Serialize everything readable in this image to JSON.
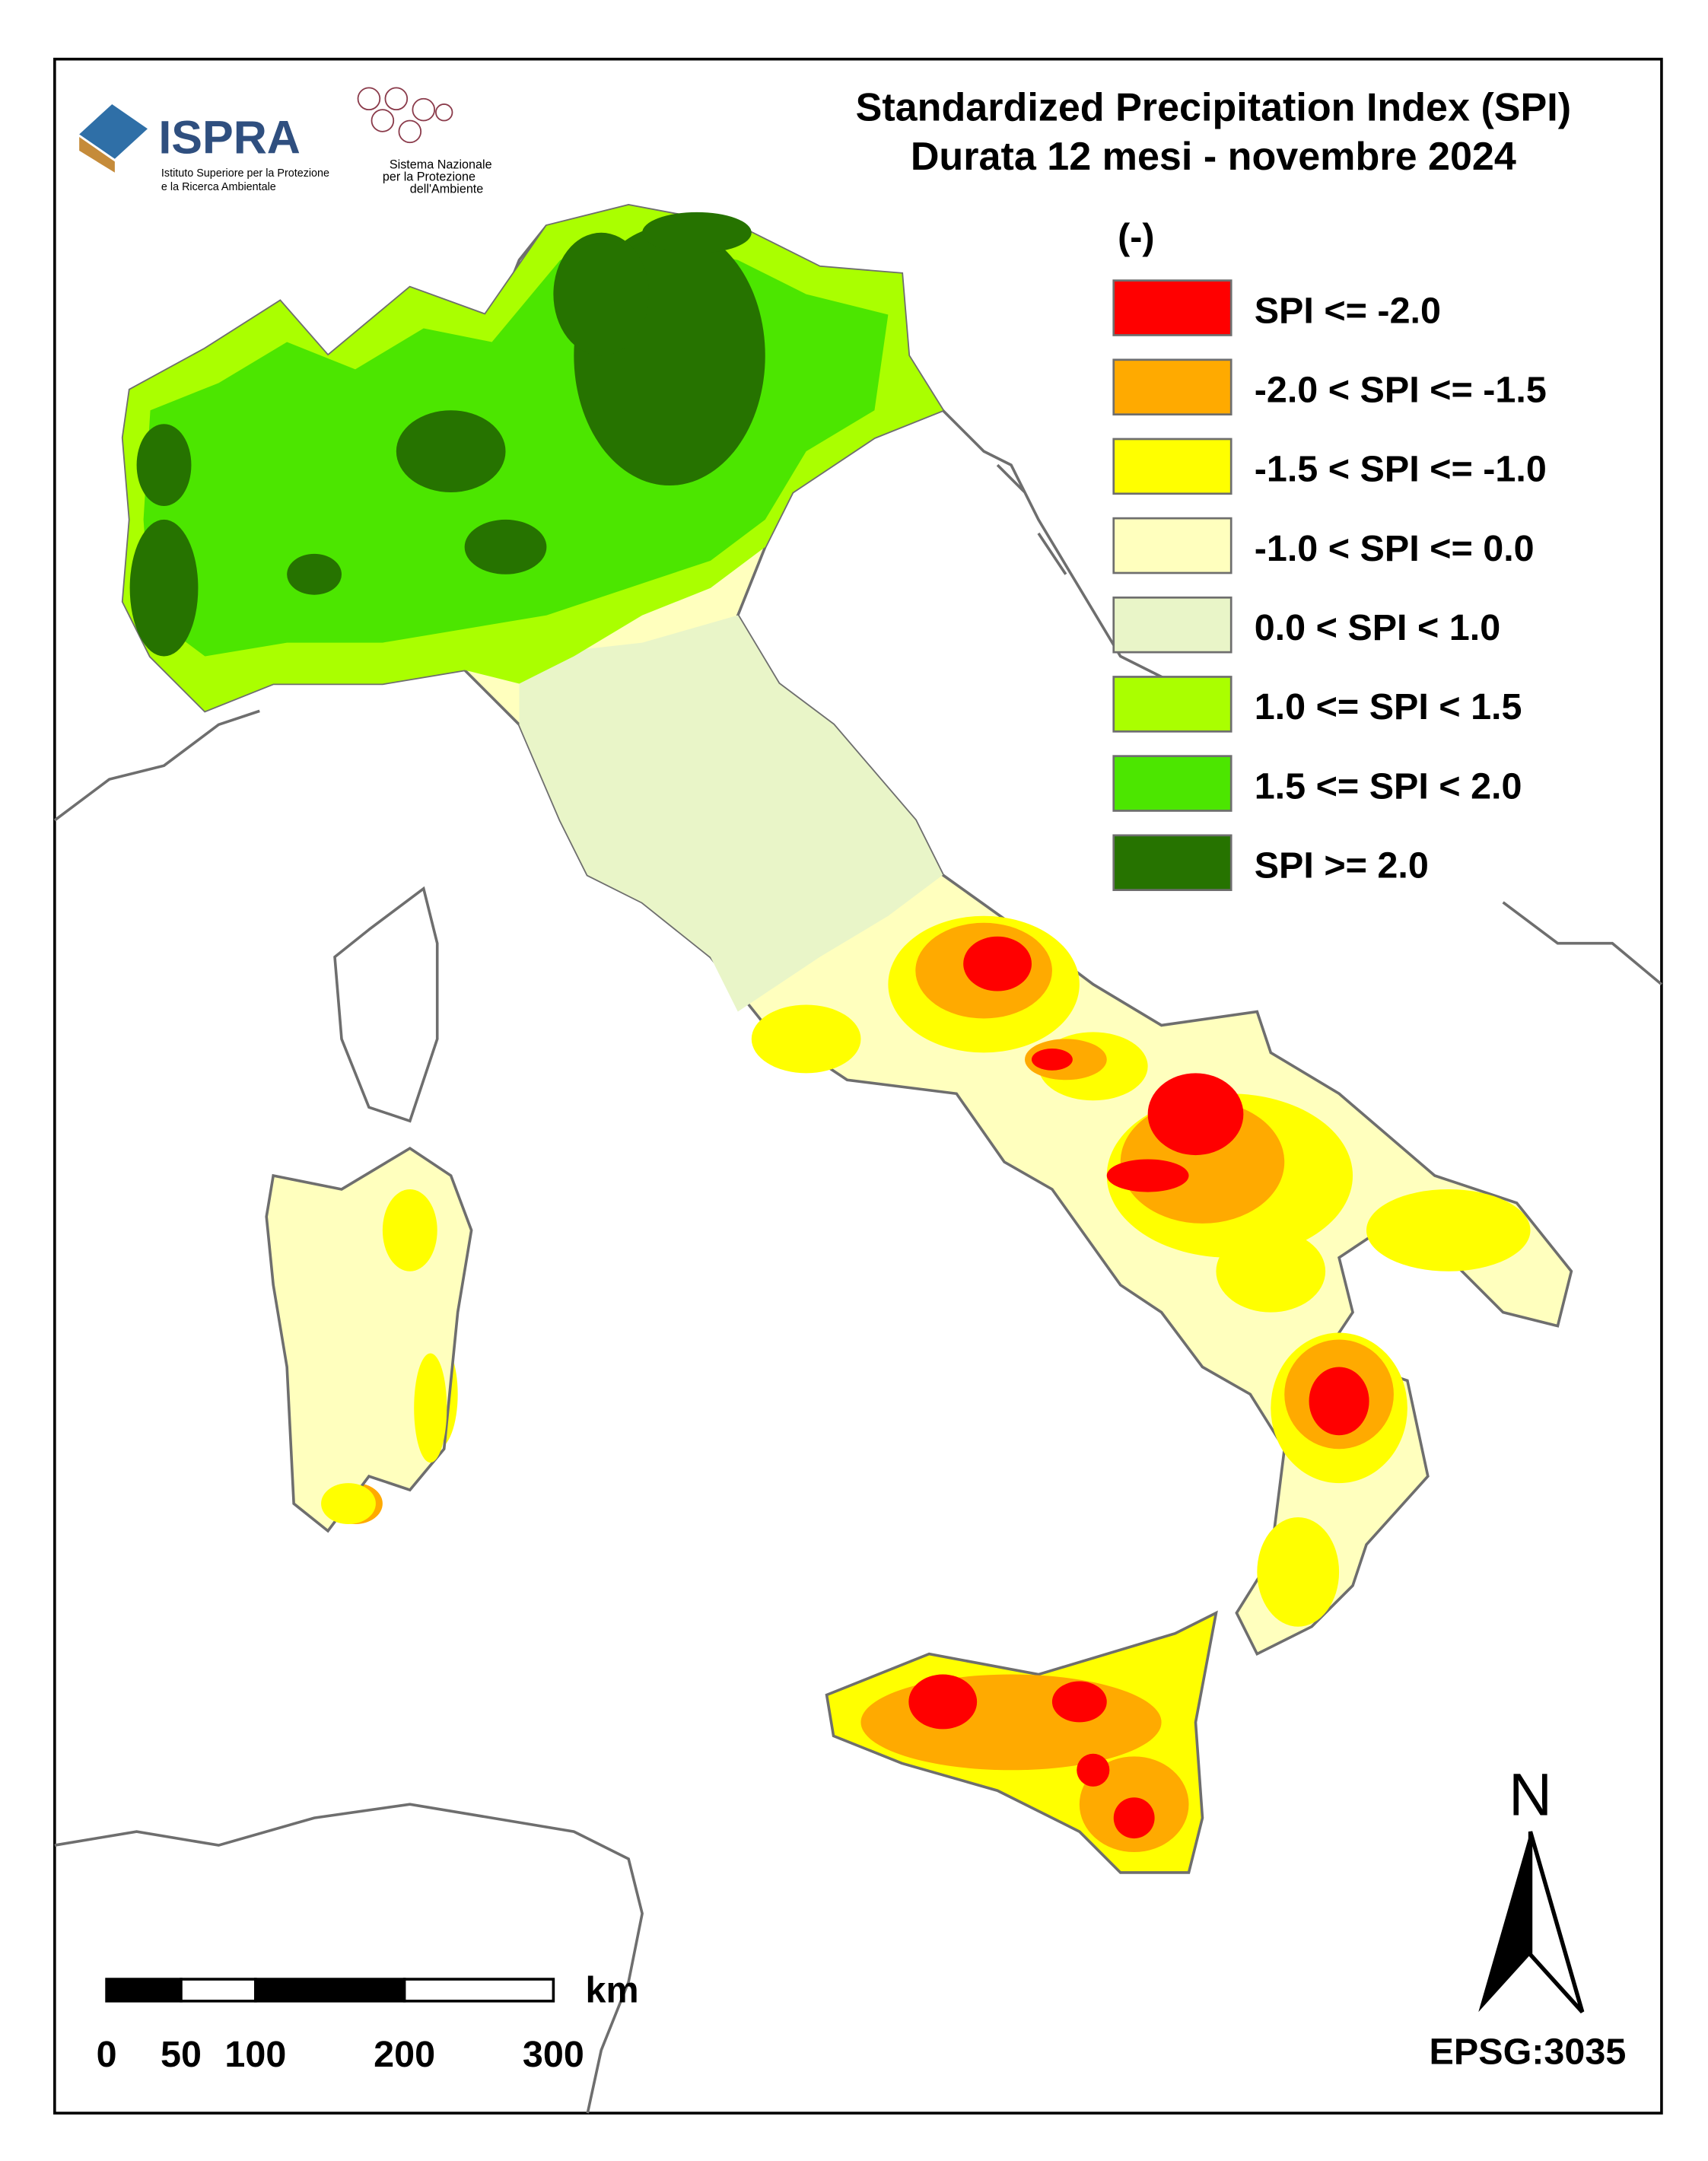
{
  "header": {
    "title_line1": "Standardized Precipitation  Index (SPI)",
    "title_line2": "Durata 12 mesi - novembre 2024"
  },
  "logos": {
    "ispra": "ISPRA",
    "ispra_subtitle": [
      "Istituto Superiore per la Protezione",
      "e la Ricerca Ambientale"
    ],
    "snpa": [
      "Sistema Nazionale",
      "per la Protezione",
      "dell'Ambiente"
    ]
  },
  "legend": {
    "unit": "(-)",
    "items": [
      {
        "label": "SPI <= -2.0",
        "color": "#ff0000"
      },
      {
        "label": "-2.0 < SPI <= -1.5",
        "color": "#ffaa00"
      },
      {
        "label": "-1.5 < SPI <= -1.0",
        "color": "#ffff00"
      },
      {
        "label": "-1.0 < SPI <= 0.0",
        "color": "#ffffbe"
      },
      {
        "label": "0.0 < SPI < 1.0",
        "color": "#e9f5c8"
      },
      {
        "label": "1.0 <= SPI < 1.5",
        "color": "#aaff00"
      },
      {
        "label": "1.5 <= SPI < 2.0",
        "color": "#4ce600"
      },
      {
        "label": "SPI >= 2.0",
        "color": "#267300"
      }
    ]
  },
  "scale_bar": {
    "unit": "km",
    "ticks": [
      0,
      50,
      100,
      200,
      300
    ]
  },
  "north_arrow": "N",
  "projection": "EPSG:3035"
}
